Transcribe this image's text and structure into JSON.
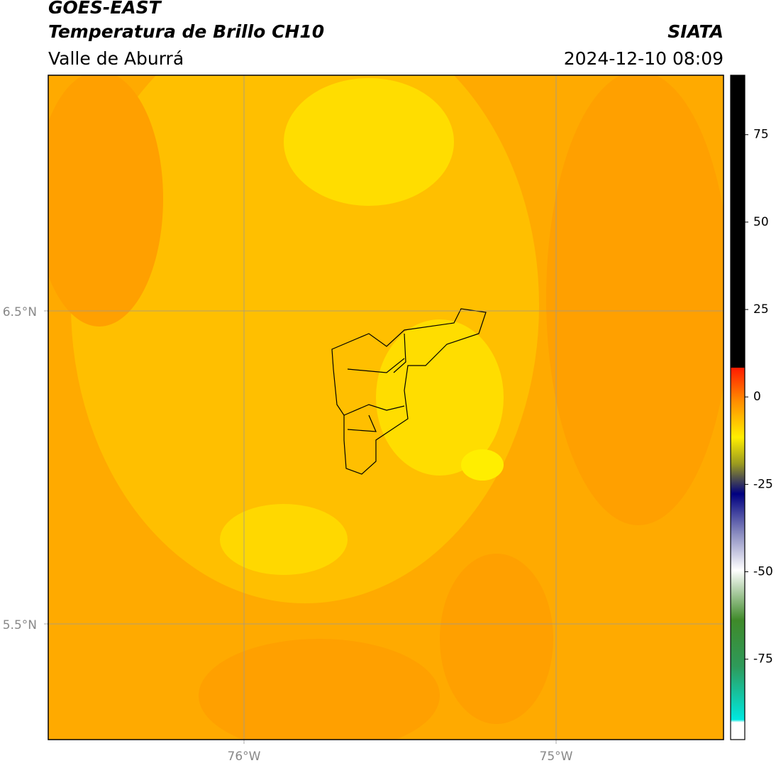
{
  "header": {
    "title": "GOES-EAST",
    "subtitle": "Temperatura de Brillo CH10",
    "region": "Valle de Aburrá",
    "source": "SIATA",
    "datetime": "2024-12-10 08:09"
  },
  "map": {
    "lat_labels": [
      "6.5°N",
      "5.5°N"
    ],
    "lon_labels": [
      "76°W",
      "75°W"
    ]
  },
  "colorbar": {
    "range": [
      -98,
      92
    ],
    "ticks": [
      75,
      50,
      25,
      0,
      -25,
      -50,
      -75
    ]
  }
}
